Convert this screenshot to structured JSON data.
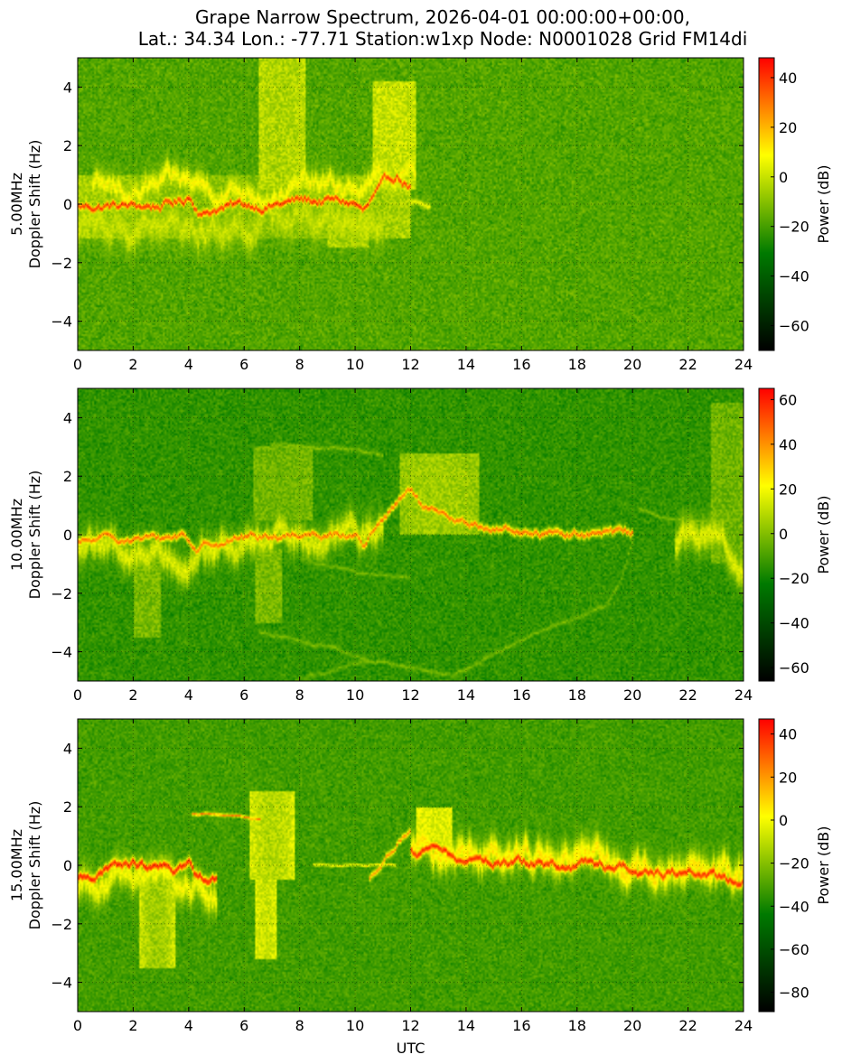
{
  "title_lines": [
    "Grape Narrow Spectrum, 2026-04-01 00:00:00+00:00,",
    "Lat.: 34.34 Lon.: -77.71 Station:w1xp Node: N0001028 Grid FM14di"
  ],
  "colormap": [
    "#000000",
    "#007a00",
    "#ffff00",
    "#ff0000"
  ],
  "chart_data": [
    {
      "type": "heatmap",
      "frequency": "5.00MHz",
      "ylabel_line1": "5.00MHz",
      "ylabel_line2": "Doppler Shift (Hz)",
      "xlabel": "",
      "colorbar_label": "Power (dB)",
      "xlim": [
        0,
        24
      ],
      "ylim": [
        -5,
        5
      ],
      "xticks": [
        0,
        2,
        4,
        6,
        8,
        10,
        12,
        14,
        16,
        18,
        20,
        22,
        24
      ],
      "yticks": [
        -4,
        -2,
        0,
        2,
        4
      ],
      "clim": [
        -70,
        48
      ],
      "cticks": [
        -60,
        -40,
        -20,
        0,
        20,
        40
      ],
      "grid": true,
      "background_db": -18,
      "traces": [
        {
          "points": [
            [
              0,
              -0.1
            ],
            [
              1,
              -0.05
            ],
            [
              2,
              -0.1
            ],
            [
              3,
              -0.05
            ],
            [
              3.8,
              0.1
            ],
            [
              4.0,
              0.3
            ],
            [
              4.5,
              -0.3
            ],
            [
              5,
              -0.1
            ],
            [
              6,
              -0.05
            ],
            [
              7,
              0.0
            ],
            [
              8,
              0.1
            ],
            [
              9,
              0.1
            ],
            [
              10,
              0.0
            ],
            [
              10.3,
              -0.3
            ],
            [
              10.7,
              0.2
            ],
            [
              11.0,
              0.5
            ],
            [
              11.5,
              0.9
            ],
            [
              12.0,
              0.6
            ]
          ],
          "db": 40,
          "width": 0.12,
          "jitter": 0.15
        },
        {
          "points": [
            [
              0.5,
              0.3
            ],
            [
              2,
              0.4
            ],
            [
              4,
              0.6
            ],
            [
              6,
              0.5
            ],
            [
              8,
              0.6
            ],
            [
              10,
              0.4
            ],
            [
              11.5,
              0.9
            ],
            [
              12.2,
              0.8
            ]
          ],
          "db": 8,
          "width": 0.35,
          "jitter": 0.3
        },
        {
          "points": [
            [
              0,
              -0.6
            ],
            [
              2,
              -0.7
            ],
            [
              4,
              -0.9
            ],
            [
              6,
              -0.6
            ],
            [
              8,
              -0.4
            ],
            [
              10,
              -0.6
            ],
            [
              11,
              -0.3
            ]
          ],
          "db": 0,
          "width": 0.5,
          "jitter": 0.4
        },
        {
          "points": [
            [
              12.0,
              0.1
            ],
            [
              12.7,
              -0.05
            ]
          ],
          "db": 5,
          "width": 0.1,
          "jitter": 0.05
        }
      ],
      "plumes": [
        {
          "t0": 6.5,
          "t1": 8.2,
          "f0": 0.5,
          "f1": 5.0,
          "db": -4
        },
        {
          "t0": 10.6,
          "t1": 12.2,
          "f0": 0.5,
          "f1": 4.2,
          "db": 0
        },
        {
          "t0": 9.0,
          "t1": 10.5,
          "f0": -1.5,
          "f1": -0.3,
          "db": -6
        },
        {
          "t0": 0.0,
          "t1": 12.0,
          "f0": -1.2,
          "f1": 1.0,
          "db": -10
        }
      ]
    },
    {
      "type": "heatmap",
      "frequency": "10.00MHz",
      "ylabel_line1": "10.00MHz",
      "ylabel_line2": "Doppler Shift (Hz)",
      "xlabel": "",
      "colorbar_label": "Power (dB)",
      "xlim": [
        0,
        24
      ],
      "ylim": [
        -5,
        5
      ],
      "xticks": [
        0,
        2,
        4,
        6,
        8,
        10,
        12,
        14,
        16,
        18,
        20,
        22,
        24
      ],
      "yticks": [
        -4,
        -2,
        0,
        2,
        4
      ],
      "clim": [
        -66,
        65
      ],
      "cticks": [
        -60,
        -40,
        -20,
        0,
        20,
        40,
        60
      ],
      "grid": true,
      "background_db": -14,
      "traces": [
        {
          "points": [
            [
              0,
              -0.3
            ],
            [
              1,
              -0.2
            ],
            [
              2,
              -0.1
            ],
            [
              3,
              -0.2
            ],
            [
              3.8,
              0.0
            ],
            [
              4.3,
              -0.5
            ],
            [
              5,
              -0.2
            ],
            [
              6,
              -0.05
            ],
            [
              7,
              -0.05
            ],
            [
              8,
              0.05
            ],
            [
              9,
              0.1
            ],
            [
              10,
              0.0
            ],
            [
              10.3,
              -0.3
            ],
            [
              11.0,
              0.5
            ],
            [
              11.5,
              1.0
            ],
            [
              12.0,
              1.5
            ],
            [
              12.5,
              0.8
            ],
            [
              13.5,
              0.4
            ],
            [
              15,
              0.2
            ],
            [
              17,
              0.05
            ],
            [
              20,
              0.0
            ]
          ],
          "db": 45,
          "width": 0.12,
          "jitter": 0.12
        },
        {
          "points": [
            [
              0,
              -0.6
            ],
            [
              2,
              -0.5
            ],
            [
              4,
              -0.6
            ],
            [
              6,
              -0.4
            ],
            [
              8,
              -0.2
            ],
            [
              10,
              -0.2
            ],
            [
              11,
              0.5
            ]
          ],
          "db": 15,
          "width": 0.45,
          "jitter": 0.35
        },
        {
          "points": [
            [
              21.5,
              -0.3
            ],
            [
              22.5,
              -0.2
            ],
            [
              23.5,
              -0.6
            ],
            [
              24,
              -0.9
            ]
          ],
          "db": 15,
          "width": 0.5,
          "jitter": 0.3
        },
        {
          "points": [
            [
              7,
              3.1
            ],
            [
              8,
              3.0
            ],
            [
              9,
              3.0
            ],
            [
              10,
              2.9
            ],
            [
              11,
              2.7
            ]
          ],
          "db": 0,
          "width": 0.05,
          "jitter": 0.05
        },
        {
          "points": [
            [
              8,
              -0.9
            ],
            [
              10,
              -1.2
            ],
            [
              12,
              -1.5
            ]
          ],
          "db": -2,
          "width": 0.05,
          "jitter": 0.05
        },
        {
          "points": [
            [
              6.5,
              -3.2
            ],
            [
              8,
              -3.6
            ],
            [
              10,
              -4.1
            ],
            [
              12,
              -4.6
            ],
            [
              13.5,
              -4.8
            ],
            [
              15,
              -4.0
            ],
            [
              17,
              -3.2
            ],
            [
              19,
              -2.5
            ],
            [
              19.6,
              -1.5
            ],
            [
              20,
              -0.2
            ]
          ],
          "db": -2,
          "width": 0.06,
          "jitter": 0.05
        },
        {
          "points": [
            [
              7.8,
              -4.9
            ],
            [
              9,
              -4.7
            ],
            [
              10.5,
              -4.3
            ]
          ],
          "db": -4,
          "width": 0.05,
          "jitter": 0.05
        },
        {
          "points": [
            [
              20.2,
              0.9
            ],
            [
              21,
              0.6
            ],
            [
              22.5,
              0.5
            ]
          ],
          "db": 0,
          "width": 0.05,
          "jitter": 0.05
        }
      ],
      "plumes": [
        {
          "t0": 11.6,
          "t1": 14.5,
          "f0": 0.0,
          "f1": 2.8,
          "db": 5
        },
        {
          "t0": 6.3,
          "t1": 8.5,
          "f0": 0.5,
          "f1": 3.0,
          "db": -4
        },
        {
          "t0": 22.8,
          "t1": 24.0,
          "f0": -1.0,
          "f1": 4.5,
          "db": -4
        },
        {
          "t0": 2.0,
          "t1": 3.0,
          "f0": -3.5,
          "f1": -0.5,
          "db": -2
        },
        {
          "t0": 6.4,
          "t1": 7.4,
          "f0": -3.0,
          "f1": -0.5,
          "db": -2
        }
      ]
    },
    {
      "type": "heatmap",
      "frequency": "15.00MHz",
      "ylabel_line1": "15.00MHz",
      "ylabel_line2": "Doppler Shift (Hz)",
      "xlabel": "UTC",
      "colorbar_label": "Power (dB)",
      "xlim": [
        0,
        24
      ],
      "ylim": [
        -5,
        5
      ],
      "xticks": [
        0,
        2,
        4,
        6,
        8,
        10,
        12,
        14,
        16,
        18,
        20,
        22,
        24
      ],
      "yticks": [
        -4,
        -2,
        0,
        2,
        4
      ],
      "clim": [
        -89,
        47
      ],
      "cticks": [
        -80,
        -60,
        -40,
        -20,
        0,
        20,
        40
      ],
      "grid": true,
      "background_db": -32,
      "traces": [
        {
          "points": [
            [
              0,
              -0.5
            ],
            [
              1,
              -0.2
            ],
            [
              2,
              0.0
            ],
            [
              3,
              -0.2
            ],
            [
              3.5,
              -0.2
            ],
            [
              4.0,
              0.0
            ],
            [
              4.3,
              -0.5
            ],
            [
              5,
              -0.4
            ]
          ],
          "db": 40,
          "width": 0.15,
          "jitter": 0.15
        },
        {
          "points": [
            [
              12.0,
              0.6
            ],
            [
              13,
              0.3
            ],
            [
              15,
              0.2
            ],
            [
              16,
              0.1
            ],
            [
              18,
              0.0
            ],
            [
              20,
              -0.1
            ],
            [
              22,
              -0.2
            ],
            [
              23,
              -0.4
            ],
            [
              24,
              -0.6
            ]
          ],
          "db": 38,
          "width": 0.15,
          "jitter": 0.15
        },
        {
          "points": [
            [
              4.1,
              1.75
            ],
            [
              5,
              1.75
            ],
            [
              6,
              1.65
            ],
            [
              6.6,
              1.6
            ]
          ],
          "db": 25,
          "width": 0.05,
          "jitter": 0.03
        },
        {
          "points": [
            [
              8.5,
              0.0
            ],
            [
              10,
              0.0
            ],
            [
              11.5,
              0.0
            ]
          ],
          "db": 5,
          "width": 0.04,
          "jitter": 0.02
        },
        {
          "points": [
            [
              10.5,
              -0.4
            ],
            [
              11,
              0.2
            ],
            [
              11.5,
              0.8
            ],
            [
              12.0,
              1.2
            ]
          ],
          "db": 20,
          "width": 0.1,
          "jitter": 0.1
        },
        {
          "points": [
            [
              12,
              0.5
            ],
            [
              15,
              0.4
            ],
            [
              18,
              0.2
            ],
            [
              21,
              0.0
            ],
            [
              24,
              -0.4
            ]
          ],
          "db": 5,
          "width": 0.45,
          "jitter": 0.35
        },
        {
          "points": [
            [
              0,
              -0.6
            ],
            [
              2,
              -0.5
            ],
            [
              4,
              -0.7
            ],
            [
              5,
              -0.9
            ]
          ],
          "db": 0,
          "width": 0.45,
          "jitter": 0.3
        }
      ],
      "plumes": [
        {
          "t0": 6.2,
          "t1": 7.8,
          "f0": -0.5,
          "f1": 2.5,
          "db": -12
        },
        {
          "t0": 6.4,
          "t1": 7.2,
          "f0": -3.2,
          "f1": -0.5,
          "db": -8
        },
        {
          "t0": 12.2,
          "t1": 13.5,
          "f0": 0.5,
          "f1": 2.0,
          "db": -5
        },
        {
          "t0": 2.2,
          "t1": 3.5,
          "f0": -3.5,
          "f1": -0.5,
          "db": -16
        }
      ]
    }
  ]
}
